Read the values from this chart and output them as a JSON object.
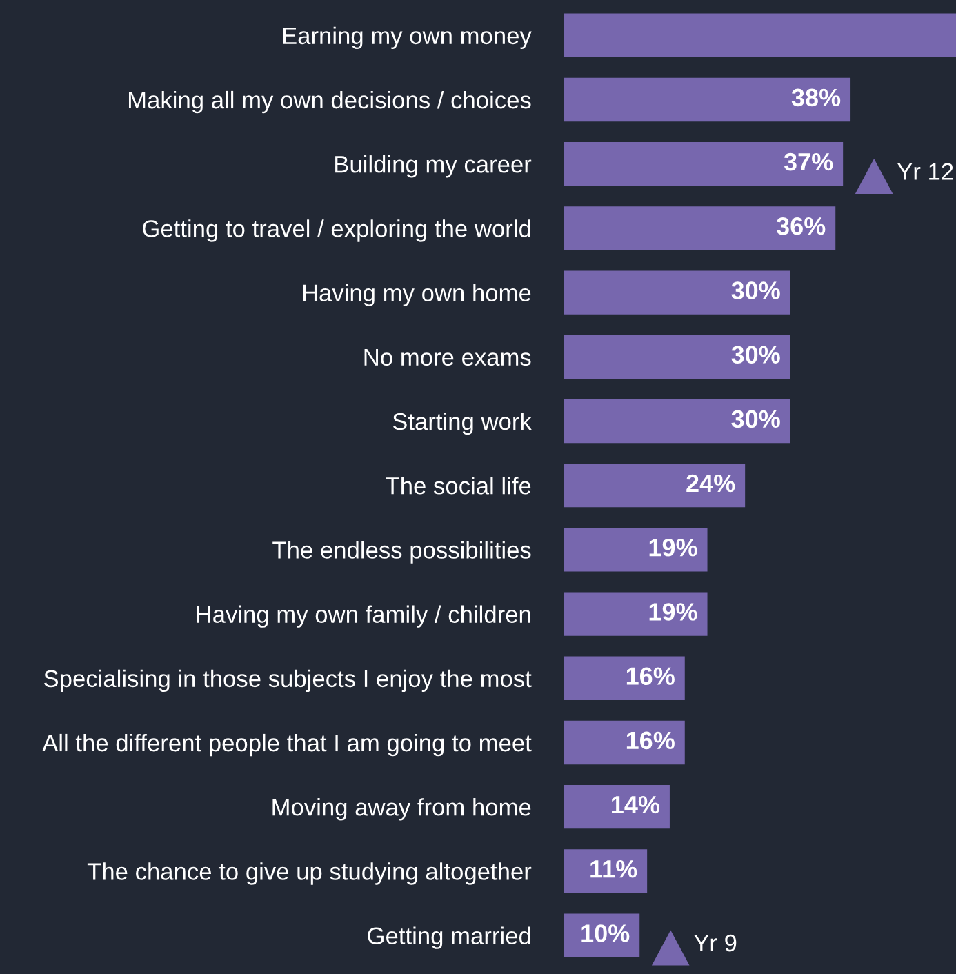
{
  "chart_data": {
    "type": "bar",
    "orientation": "horizontal",
    "categories": [
      "Earning my own money",
      "Making all my own decisions / choices",
      "Building my career",
      "Getting to travel / exploring the world",
      "Having my own home",
      "No more exams",
      "Starting work",
      "The social life",
      "The endless possibilities",
      "Having my own family / children",
      "Specialising in those subjects I enjoy the most",
      "All the different people that I am going to meet",
      "Moving away from home",
      "The chance to give up studying altogether",
      "Getting married"
    ],
    "values": [
      52,
      38,
      37,
      36,
      30,
      30,
      30,
      24,
      19,
      19,
      16,
      16,
      14,
      11,
      10
    ],
    "value_labels": [
      null,
      "38%",
      "37%",
      "36%",
      "30%",
      "30%",
      "30%",
      "24%",
      "19%",
      "19%",
      "16%",
      "16%",
      "14%",
      "11%",
      "10%"
    ],
    "color": "#7767ae",
    "xlim": [
      0,
      52
    ],
    "grid": false,
    "legend": false,
    "annotations": [
      {
        "text": "Yr 12",
        "x": 37,
        "y": "Building my career"
      },
      {
        "text": "Yr 9",
        "x": 10,
        "y": "Getting married"
      }
    ]
  }
}
